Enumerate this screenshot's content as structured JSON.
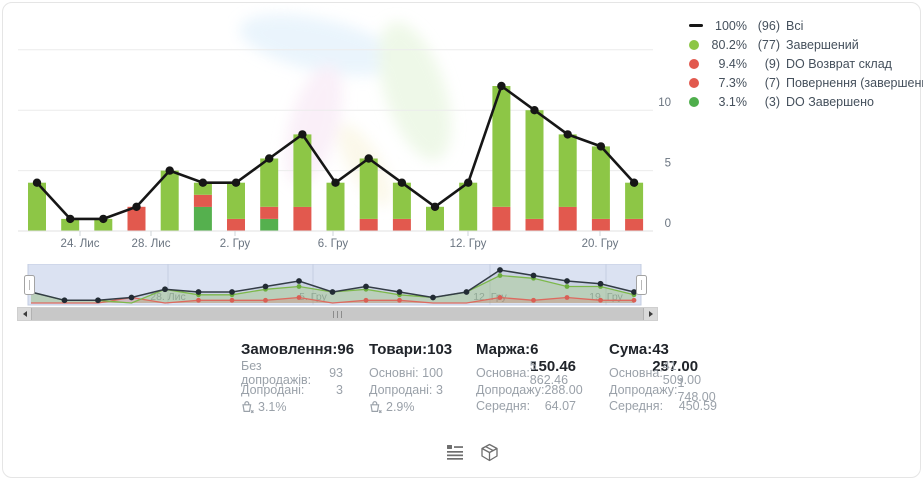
{
  "chart_data": {
    "type": "stacked-bar+line",
    "title": "",
    "y_ticks": [
      0,
      5,
      10
    ],
    "ylim": [
      0,
      15
    ],
    "grid": "horizontal",
    "legend_position": "top-right",
    "colors": {
      "lg": "#8dc646",
      "rd": "#e2594e",
      "dg": "#55b04e",
      "line": "#161616"
    },
    "series_names": {
      "line": "Всі",
      "lg": "Завершений",
      "rd": "DO Возврат склад / Повернення (завершений)",
      "dg": "DO Завершено"
    },
    "line_total": [
      4,
      1,
      1,
      2,
      5,
      4,
      4,
      6,
      8,
      4,
      6,
      4,
      2,
      4,
      12,
      10,
      8,
      7,
      4
    ],
    "bars": [
      {
        "segments": [
          [
            "lg",
            4
          ]
        ]
      },
      {
        "segments": [
          [
            "lg",
            1
          ]
        ]
      },
      {
        "segments": [
          [
            "lg",
            1
          ]
        ]
      },
      {
        "segments": [
          [
            "rd",
            2
          ]
        ]
      },
      {
        "segments": [
          [
            "lg",
            5
          ]
        ]
      },
      {
        "segments": [
          [
            "dg",
            2
          ],
          [
            "rd",
            1
          ],
          [
            "lg",
            1
          ]
        ]
      },
      {
        "segments": [
          [
            "rd",
            1
          ],
          [
            "lg",
            3
          ]
        ]
      },
      {
        "segments": [
          [
            "dg",
            1
          ],
          [
            "rd",
            1
          ],
          [
            "lg",
            4
          ]
        ]
      },
      {
        "segments": [
          [
            "rd",
            2
          ],
          [
            "lg",
            6
          ]
        ]
      },
      {
        "segments": [
          [
            "lg",
            4
          ]
        ]
      },
      {
        "segments": [
          [
            "rd",
            1
          ],
          [
            "lg",
            5
          ]
        ]
      },
      {
        "segments": [
          [
            "rd",
            1
          ],
          [
            "lg",
            3
          ]
        ]
      },
      {
        "segments": [
          [
            "lg",
            2
          ]
        ]
      },
      {
        "segments": [
          [
            "lg",
            4
          ]
        ]
      },
      {
        "segments": [
          [
            "rd",
            2
          ],
          [
            "lg",
            10
          ]
        ]
      },
      {
        "segments": [
          [
            "rd",
            1
          ],
          [
            "lg",
            9
          ]
        ]
      },
      {
        "segments": [
          [
            "rd",
            2
          ],
          [
            "lg",
            6
          ]
        ]
      },
      {
        "segments": [
          [
            "rd",
            1
          ],
          [
            "lg",
            6
          ]
        ]
      },
      {
        "segments": [
          [
            "rd",
            1
          ],
          [
            "lg",
            3
          ]
        ]
      }
    ],
    "x_axis_labels": [
      {
        "text": "24. Лис",
        "x": 77
      },
      {
        "text": "28. Лис",
        "x": 148
      },
      {
        "text": "2. Гру",
        "x": 232
      },
      {
        "text": "6. Гру",
        "x": 330
      },
      {
        "text": "12. Гру",
        "x": 465
      },
      {
        "text": "20. Гру",
        "x": 597
      }
    ]
  },
  "legend": {
    "items": [
      {
        "swatch": "line",
        "color": "#161616",
        "pct": "100%",
        "count": "(96)",
        "label": "Всі"
      },
      {
        "swatch": "dot",
        "color": "#8dc646",
        "pct": "80.2%",
        "count": "(77)",
        "label": "Завершений"
      },
      {
        "swatch": "dot",
        "color": "#e2594e",
        "pct": "9.4%",
        "count": "(9)",
        "label": "DO Возврат склад"
      },
      {
        "swatch": "dot",
        "color": "#e2594e",
        "pct": "7.3%",
        "count": "(7)",
        "label": "Повернення (завершений)"
      },
      {
        "swatch": "dot",
        "color": "#4fae4c",
        "pct": "3.1%",
        "count": "(3)",
        "label": "DO Завершено"
      }
    ]
  },
  "navigator": {
    "labels": [
      {
        "text": "28. Лис",
        "x": 151
      },
      {
        "text": "5. Гру",
        "x": 296
      },
      {
        "text": "12. Гру",
        "x": 473
      },
      {
        "text": "19. Гру",
        "x": 589
      }
    ]
  },
  "stats": {
    "columns": [
      {
        "header": {
          "label": "Замовлення:",
          "value": "96"
        },
        "rows": [
          {
            "label": "Без допродажів:",
            "value": "93"
          },
          {
            "label": "Допродані:",
            "value": "3"
          }
        ],
        "basket_pct": "3.1%"
      },
      {
        "header": {
          "label": "Товари:",
          "value": "103"
        },
        "rows": [
          {
            "label": "Основні:",
            "value": "100"
          },
          {
            "label": "Допродані:",
            "value": "3"
          }
        ],
        "basket_pct": "2.9%"
      },
      {
        "header": {
          "label": "Маржа:",
          "value": "6 150.46"
        },
        "rows": [
          {
            "label": "Основна:",
            "value": "5 862.46"
          },
          {
            "label": "Допродажу:",
            "value": "288.00"
          },
          {
            "label": "Середня:",
            "value": "64.07"
          }
        ],
        "basket_pct": null
      },
      {
        "header": {
          "label": "Сума:",
          "value": "43 257.00"
        },
        "rows": [
          {
            "label": "Основна:",
            "value": "41 509.00"
          },
          {
            "label": "Допродажу:",
            "value": "1 748.00"
          },
          {
            "label": "Середня:",
            "value": "450.59"
          }
        ],
        "basket_pct": null
      }
    ]
  },
  "footer": {
    "icons": [
      "list-icon",
      "package-icon"
    ]
  }
}
